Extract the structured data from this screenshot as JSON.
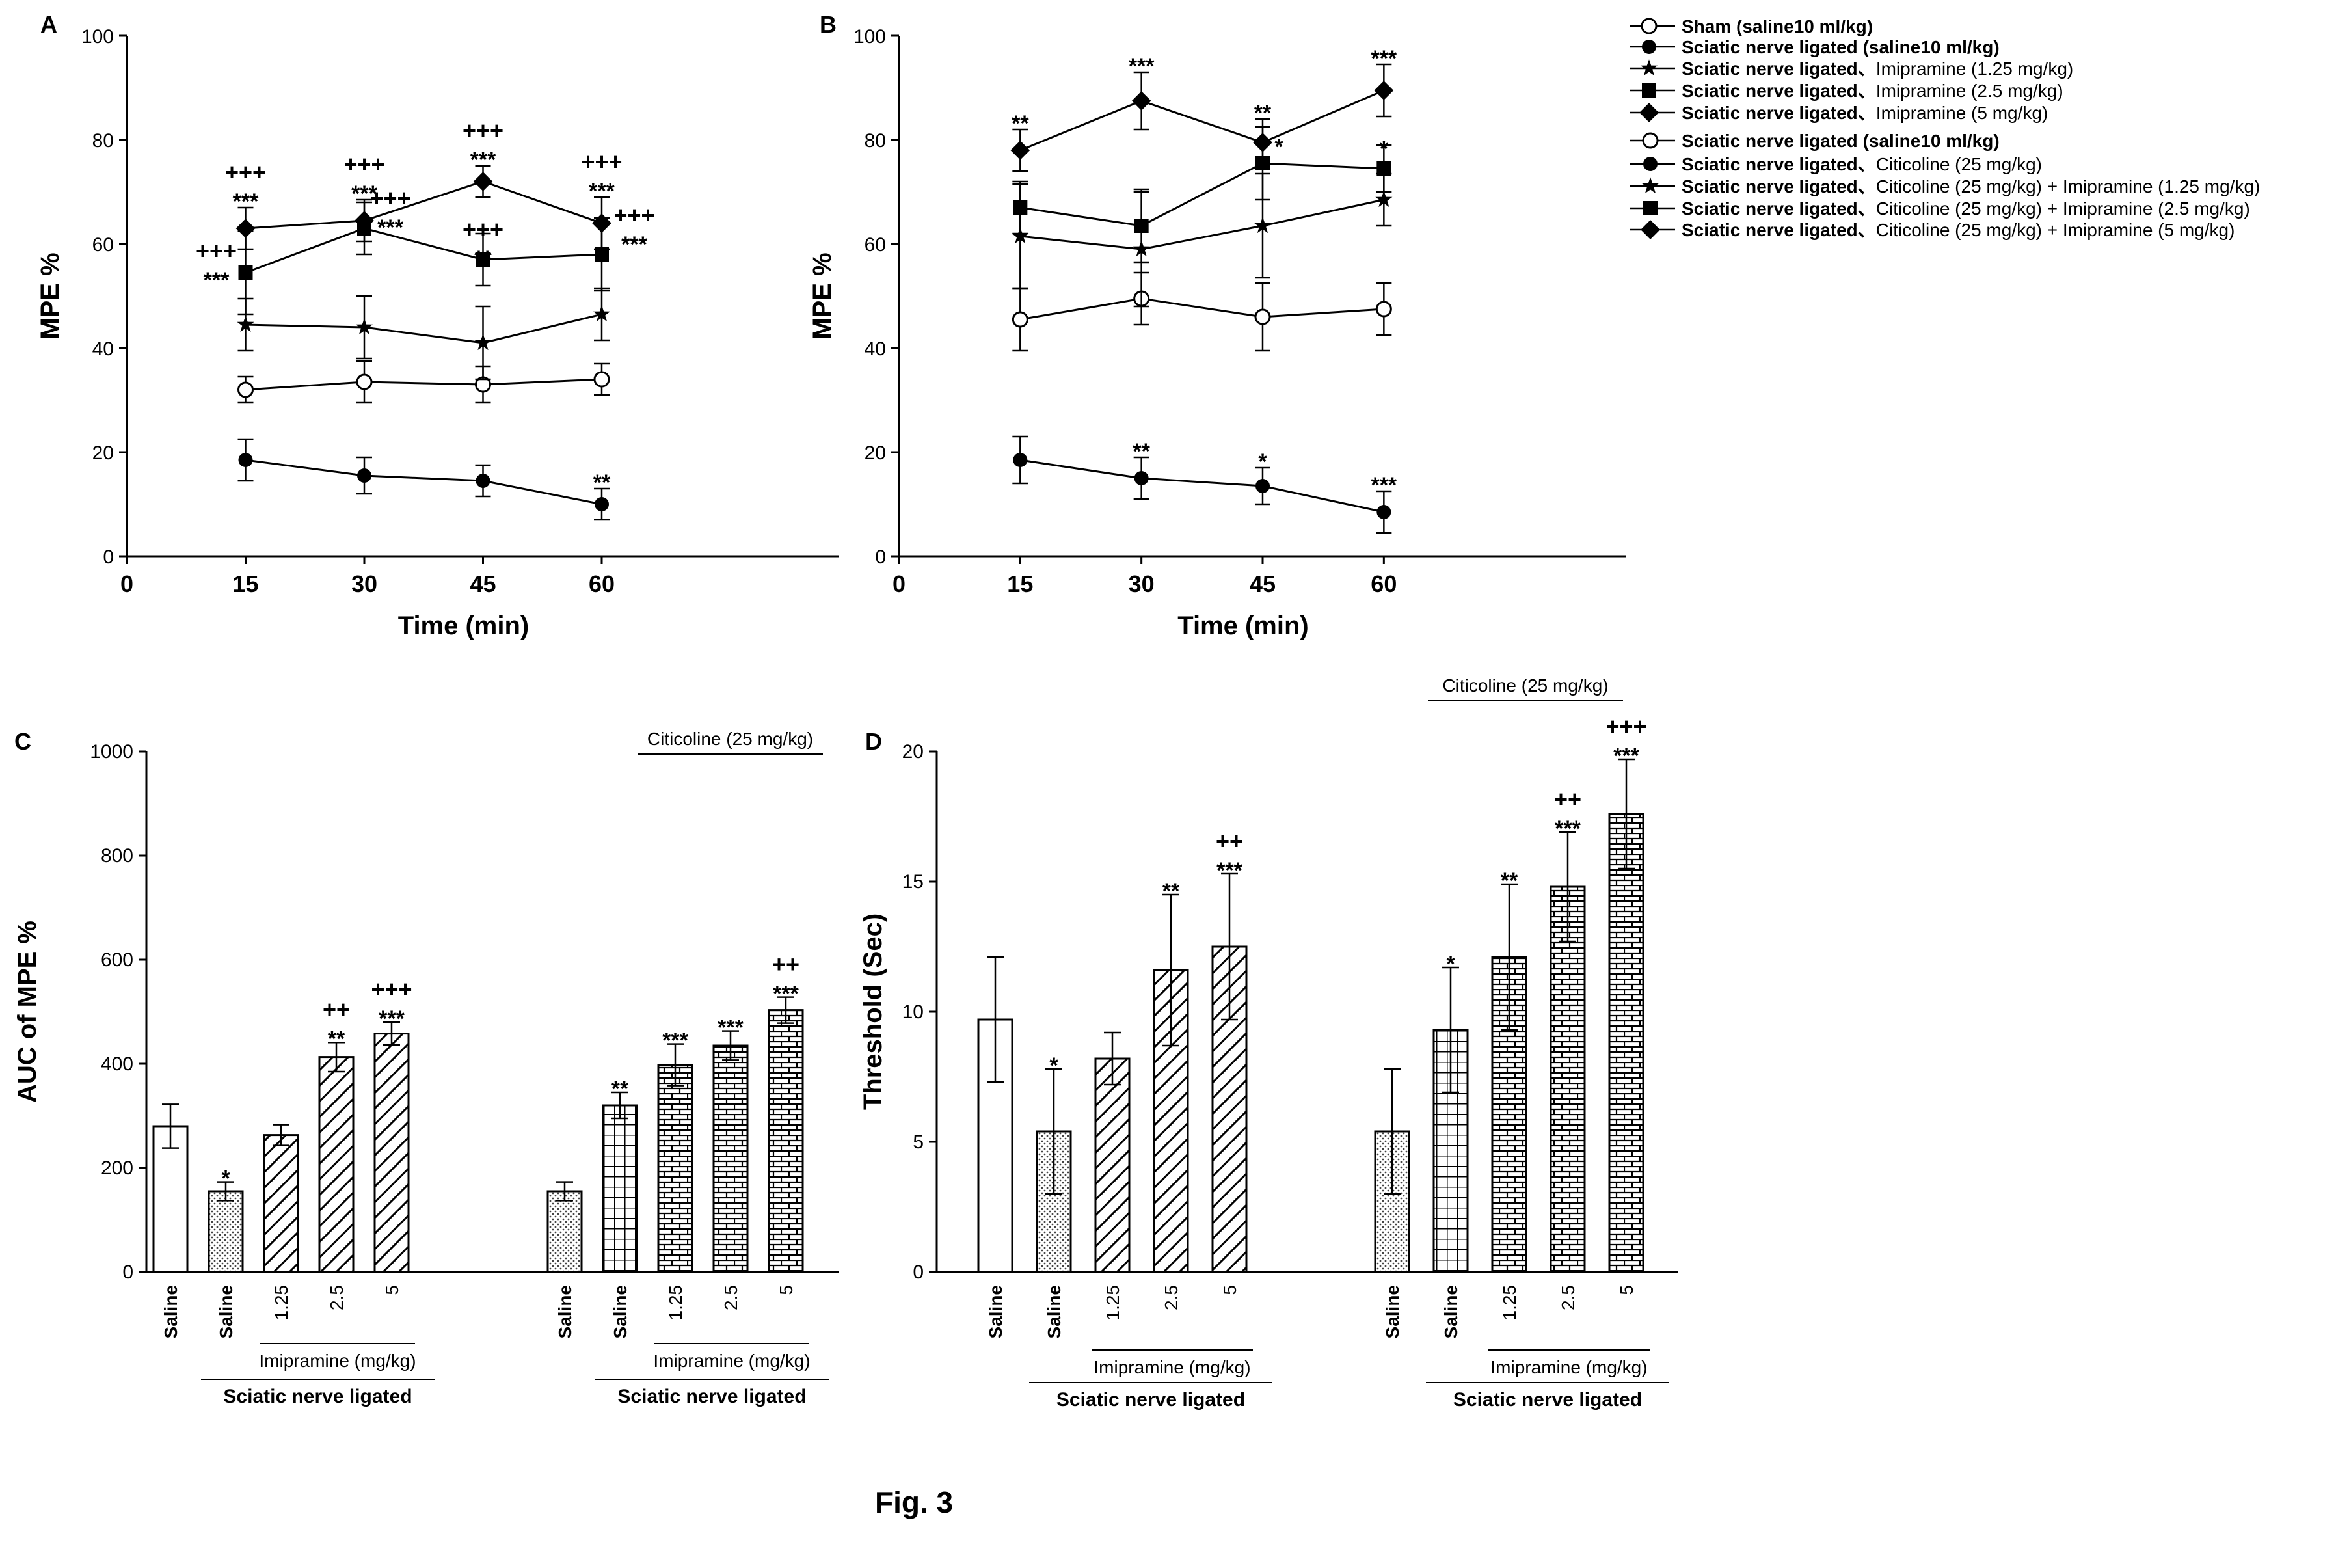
{
  "figure_caption": "Fig. 3",
  "legend": {
    "entries": [
      {
        "marker": "open-circle",
        "bold": "Sham (saline10 ml/kg)",
        "rest": ""
      },
      {
        "marker": "filled-circle",
        "bold": "Sciatic nerve ligated (saline10 ml/kg)",
        "rest": ""
      },
      {
        "marker": "star",
        "bold": "Sciatic nerve ligated、",
        "rest": "Imipramine (1.25 mg/kg)"
      },
      {
        "marker": "square",
        "bold": "Sciatic nerve ligated、",
        "rest": "Imipramine (2.5 mg/kg)"
      },
      {
        "marker": "diamond",
        "bold": "Sciatic nerve ligated、",
        "rest": "Imipramine (5 mg/kg)"
      },
      {
        "marker": "open-circle",
        "bold": "Sciatic nerve ligated (saline10 ml/kg)",
        "rest": ""
      },
      {
        "marker": "filled-circle",
        "bold": "Sciatic nerve ligated、",
        "rest": "Citicoline (25 mg/kg)"
      },
      {
        "marker": "star",
        "bold": "Sciatic nerve ligated、",
        "rest": "Citicoline (25 mg/kg) + Imipramine (1.25 mg/kg)"
      },
      {
        "marker": "square",
        "bold": "Sciatic nerve ligated、",
        "rest": "Citicoline (25 mg/kg) + Imipramine (2.5 mg/kg)"
      },
      {
        "marker": "diamond",
        "bold": "Sciatic nerve ligated、",
        "rest": "Citicoline (25 mg/kg) + Imipramine (5 mg/kg)"
      }
    ]
  },
  "chart_data": [
    {
      "panel": "A",
      "type": "line",
      "xlabel": "Time (min)",
      "ylabel": "MPE %",
      "xlim": [
        0,
        90
      ],
      "ylim": [
        0,
        100
      ],
      "xticks": [
        0,
        15,
        30,
        45,
        60
      ],
      "yticks": [
        0,
        20,
        40,
        60,
        80,
        100
      ],
      "x": [
        15,
        30,
        45,
        60
      ],
      "series": [
        {
          "marker": "open-circle",
          "values": [
            32,
            33.5,
            33,
            34
          ],
          "errors": [
            2.5,
            4,
            3.5,
            3
          ],
          "labels": [
            "",
            "",
            "",
            ""
          ]
        },
        {
          "marker": "filled-circle",
          "values": [
            18.5,
            15.5,
            14.5,
            10
          ],
          "errors": [
            4,
            3.5,
            3,
            3
          ],
          "labels": [
            "",
            "",
            "",
            "**"
          ]
        },
        {
          "marker": "star",
          "values": [
            44.5,
            44,
            41,
            46.5
          ],
          "errors": [
            5,
            6,
            7,
            5
          ],
          "labels": [
            "",
            "",
            "",
            ""
          ]
        },
        {
          "marker": "square",
          "values": [
            54.5,
            63,
            57,
            58
          ],
          "errors": [
            8,
            5,
            5,
            7
          ],
          "labels": [
            "+++|***",
            "+++|***",
            "+++|**",
            "+++|***"
          ]
        },
        {
          "marker": "diamond",
          "values": [
            63,
            64.5,
            72,
            64
          ],
          "errors": [
            4,
            4,
            3,
            5
          ],
          "labels": [
            "+++|***",
            "+++|***",
            "+++|***",
            "+++|***"
          ]
        }
      ]
    },
    {
      "panel": "B",
      "type": "line",
      "xlabel": "Time (min)",
      "ylabel": "MPE %",
      "xlim": [
        0,
        90
      ],
      "ylim": [
        0,
        100
      ],
      "xticks": [
        0,
        15,
        30,
        45,
        60
      ],
      "yticks": [
        0,
        20,
        40,
        60,
        80,
        100
      ],
      "x": [
        15,
        30,
        45,
        60
      ],
      "series": [
        {
          "marker": "open-circle",
          "values": [
            45.5,
            49.5,
            46,
            47.5
          ],
          "errors": [
            6,
            5,
            6.5,
            5
          ],
          "labels": [
            "",
            "",
            "",
            ""
          ]
        },
        {
          "marker": "filled-circle",
          "values": [
            18.5,
            15,
            13.5,
            8.5
          ],
          "errors": [
            4.5,
            4,
            3.5,
            4
          ],
          "labels": [
            "",
            "**",
            "*",
            "***"
          ]
        },
        {
          "marker": "star",
          "values": [
            61.5,
            59,
            63.5,
            68.5
          ],
          "errors": [
            10,
            11,
            10,
            5
          ],
          "labels": [
            "",
            "",
            "",
            ""
          ]
        },
        {
          "marker": "square",
          "values": [
            67,
            63.5,
            75.5,
            74.5
          ],
          "errors": [
            5,
            7,
            7,
            4.5
          ],
          "labels": [
            "",
            "",
            "*",
            "*"
          ]
        },
        {
          "marker": "diamond",
          "values": [
            78,
            87.5,
            79.5,
            89.5
          ],
          "errors": [
            4,
            5.5,
            4.5,
            5
          ],
          "labels": [
            "**",
            "***",
            "**",
            "***"
          ]
        }
      ]
    },
    {
      "panel": "C",
      "type": "bar",
      "ylabel": "AUC of MPE %",
      "ylim": [
        0,
        1000
      ],
      "yticks": [
        0,
        200,
        400,
        600,
        800,
        1000
      ],
      "groups": [
        {
          "categories": [
            "Saline",
            "Saline",
            "1.25",
            "2.5",
            "5"
          ],
          "values": [
            280,
            155,
            263,
            413,
            458
          ],
          "errors": [
            42,
            18,
            20,
            28,
            22
          ],
          "patterns": [
            "none",
            "dots",
            "diagonal",
            "diagonal",
            "diagonal"
          ],
          "labels": [
            "",
            "*",
            "",
            "++|**",
            "+++|***"
          ],
          "sublabel": "Imipramine (mg/kg)",
          "grouplabel": "Sciatic nerve ligated",
          "toplabel": ""
        },
        {
          "categories": [
            "Saline",
            "Saline",
            "1.25",
            "2.5",
            "5"
          ],
          "values": [
            155,
            320,
            398,
            435,
            503
          ],
          "errors": [
            18,
            25,
            40,
            28,
            25
          ],
          "patterns": [
            "dots",
            "grid",
            "brick",
            "brick",
            "brick"
          ],
          "labels": [
            "",
            "**",
            "***",
            "***",
            "++|***"
          ],
          "sublabel": "Imipramine (mg/kg)",
          "grouplabel": "Sciatic nerve ligated",
          "toplabel": "Citicoline (25 mg/kg)"
        }
      ]
    },
    {
      "panel": "D",
      "type": "bar",
      "ylabel": "Threshold (Sec)",
      "ylim": [
        0,
        20
      ],
      "yticks": [
        0,
        5,
        10,
        15,
        20
      ],
      "groups": [
        {
          "categories": [
            "Saline",
            "Saline",
            "1.25",
            "2.5",
            "5"
          ],
          "values": [
            9.7,
            5.4,
            8.2,
            11.6,
            12.5
          ],
          "errors": [
            2.4,
            2.4,
            1.0,
            2.9,
            2.8
          ],
          "patterns": [
            "none",
            "dots",
            "diagonal",
            "diagonal",
            "diagonal"
          ],
          "labels": [
            "",
            "*",
            "",
            "**",
            "++|***"
          ],
          "sublabel": "Imipramine (mg/kg)",
          "grouplabel": "Sciatic nerve ligated",
          "toplabel": ""
        },
        {
          "categories": [
            "Saline",
            "Saline",
            "1.25",
            "2.5",
            "5"
          ],
          "values": [
            5.4,
            9.3,
            12.1,
            14.8,
            17.6
          ],
          "errors": [
            2.4,
            2.4,
            2.8,
            2.1,
            2.1
          ],
          "patterns": [
            "dots",
            "grid",
            "brick",
            "brick",
            "brick"
          ],
          "labels": [
            "",
            "*",
            "**",
            "++|***",
            "+++|***"
          ],
          "sublabel": "Imipramine (mg/kg)",
          "grouplabel": "Sciatic nerve ligated",
          "toplabel": "Citicoline (25 mg/kg)"
        }
      ]
    }
  ]
}
